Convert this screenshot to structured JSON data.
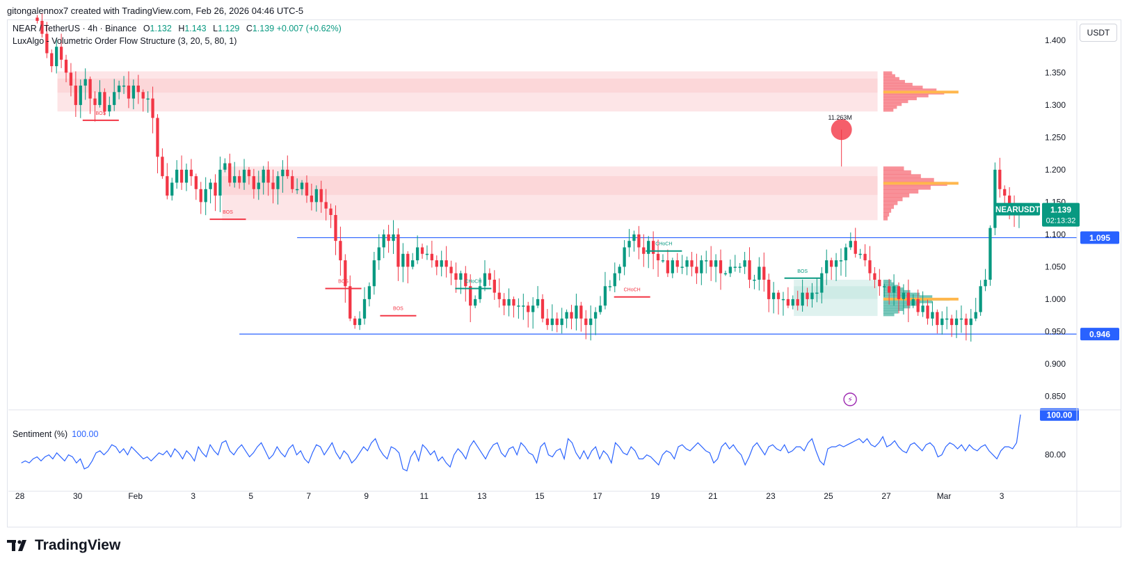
{
  "caption": "gitongalennox7 created with TradingView.com, Feb 26, 2026 04:46 UTC-5",
  "legend": {
    "symbol": "NEAR / TetherUS · 4h · Binance",
    "o_label": "O",
    "o": "1.132",
    "h_label": "H",
    "h": "1.143",
    "l_label": "L",
    "l": "1.129",
    "c_label": "C",
    "c": "1.139",
    "change": "+0.007 (+0.62%)",
    "indicator": "LuxAlgo - Volumetric Order Flow Structure (3, 20, 5, 80, 1)"
  },
  "sentiment": {
    "label": "Sentiment (%)",
    "value": "100.00",
    "axis_label": "80.00",
    "badge": "100.00"
  },
  "currency": "USDT",
  "price_badge": {
    "symbol": "NEARUSDT",
    "price": "1.139",
    "countdown": "02:13:32"
  },
  "brand": "TradingView",
  "colors": {
    "up": "#089981",
    "down": "#f23645",
    "level": "#2962ff",
    "sentiment": "#2962ff",
    "poc": "#ffb74d"
  },
  "chart_data": {
    "type": "candlestick",
    "title": "NEAR / TetherUS · 4h · Binance",
    "ylim": [
      0.83,
      1.43
    ],
    "y_ticks": [
      1.4,
      1.35,
      1.3,
      1.25,
      1.2,
      1.15,
      1.1,
      1.05,
      1.0,
      0.95,
      0.9,
      0.85
    ],
    "y_tick_labels": [
      "1.400",
      "1.350",
      "1.300",
      "1.250",
      "1.200",
      "1.150",
      "1.100",
      "1.050",
      "1.000",
      "0.950",
      "0.900",
      "0.850"
    ],
    "x_ticks": [
      {
        "day": 28,
        "label": "28"
      },
      {
        "day": 30,
        "label": "30"
      },
      {
        "day": 32,
        "label": "Feb"
      },
      {
        "day": 34,
        "label": "3"
      },
      {
        "day": 36,
        "label": "5"
      },
      {
        "day": 38,
        "label": "7"
      },
      {
        "day": 40,
        "label": "9"
      },
      {
        "day": 42,
        "label": "11"
      },
      {
        "day": 44,
        "label": "13"
      },
      {
        "day": 46,
        "label": "15"
      },
      {
        "day": 48,
        "label": "17"
      },
      {
        "day": 50,
        "label": "19"
      },
      {
        "day": 52,
        "label": "21"
      },
      {
        "day": 54,
        "label": "23"
      },
      {
        "day": 56,
        "label": "25"
      },
      {
        "day": 58,
        "label": "27"
      },
      {
        "day": 60,
        "label": "Mar"
      },
      {
        "day": 62,
        "label": "3"
      }
    ],
    "xlim_days": [
      27.6,
      64.6
    ],
    "candles_start_day": 28.6,
    "candles_per_day": 6,
    "closes": [
      1.43,
      1.41,
      1.38,
      1.36,
      1.39,
      1.37,
      1.35,
      1.33,
      1.3,
      1.33,
      1.34,
      1.31,
      1.3,
      1.32,
      1.29,
      1.3,
      1.32,
      1.33,
      1.33,
      1.31,
      1.33,
      1.32,
      1.31,
      1.31,
      1.28,
      1.22,
      1.19,
      1.16,
      1.18,
      1.2,
      1.18,
      1.2,
      1.19,
      1.17,
      1.15,
      1.17,
      1.18,
      1.16,
      1.2,
      1.21,
      1.18,
      1.19,
      1.18,
      1.2,
      1.19,
      1.17,
      1.18,
      1.2,
      1.18,
      1.17,
      1.19,
      1.2,
      1.19,
      1.17,
      1.17,
      1.18,
      1.16,
      1.15,
      1.17,
      1.15,
      1.14,
      1.13,
      1.09,
      1.06,
      1.02,
      0.97,
      0.96,
      0.97,
      1.0,
      1.02,
      1.06,
      1.08,
      1.1,
      1.09,
      1.1,
      1.05,
      1.07,
      1.05,
      1.06,
      1.08,
      1.07,
      1.07,
      1.06,
      1.05,
      1.06,
      1.05,
      1.04,
      1.03,
      1.04,
      1.02,
      0.99,
      1.0,
      1.02,
      1.04,
      1.03,
      1.01,
      1.0,
      0.99,
      1.0,
      0.99,
      0.99,
      0.99,
      0.98,
      0.99,
      1.0,
      0.97,
      0.96,
      0.97,
      0.96,
      0.97,
      0.98,
      0.97,
      0.99,
      0.97,
      0.96,
      0.97,
      0.98,
      0.99,
      1.02,
      1.02,
      1.04,
      1.05,
      1.08,
      1.09,
      1.1,
      1.08,
      1.07,
      1.09,
      1.07,
      1.06,
      1.06,
      1.04,
      1.06,
      1.05,
      1.05,
      1.06,
      1.05,
      1.04,
      1.06,
      1.06,
      1.05,
      1.06,
      1.04,
      1.04,
      1.05,
      1.05,
      1.05,
      1.06,
      1.03,
      1.03,
      1.05,
      1.03,
      1.0,
      1.01,
      1.0,
      1.0,
      0.99,
      1.0,
      0.99,
      1.01,
      1.0,
      1.01,
      1.01,
      1.04,
      1.06,
      1.05,
      1.06,
      1.06,
      1.08,
      1.09,
      1.07,
      1.07,
      1.06,
      1.04,
      1.03,
      1.02,
      1.02,
      1.01,
      1.02,
      1.0,
      1.01,
      0.99,
      1.0,
      0.98,
      0.99,
      0.97,
      0.98,
      0.96,
      0.97,
      0.97,
      0.96,
      0.97,
      0.97,
      0.96,
      0.97,
      0.98,
      1.02,
      1.03,
      1.11,
      1.2,
      1.17,
      1.16,
      1.14,
      1.13,
      1.139
    ],
    "volume_profile_zones": [
      {
        "type": "supply",
        "top": 1.352,
        "bottom": 1.29,
        "poc": 1.32
      },
      {
        "type": "supply",
        "top": 1.205,
        "bottom": 1.122,
        "poc": 1.179
      },
      {
        "type": "demand",
        "top": 1.03,
        "bottom": 0.974,
        "poc": 1.0
      }
    ],
    "horizontal_levels": [
      {
        "price": 1.095,
        "label": "1.095",
        "from_day": 37.6,
        "to_day": 64.6
      },
      {
        "price": 0.946,
        "label": "0.946",
        "from_day": 35.6,
        "to_day": 64.6
      }
    ],
    "structure_labels": [
      {
        "text": "BOS",
        "day": 30.8,
        "price": 1.285,
        "color": "down"
      },
      {
        "text": "BOS",
        "day": 35.2,
        "price": 1.132,
        "color": "down"
      },
      {
        "text": "BOS",
        "day": 39.2,
        "price": 1.025,
        "color": "down"
      },
      {
        "text": "BOS",
        "day": 41.1,
        "price": 0.983,
        "color": "down"
      },
      {
        "text": "CHoCH",
        "day": 43.7,
        "price": 1.025,
        "color": "up"
      },
      {
        "text": "CHoCH",
        "day": 50.3,
        "price": 1.083,
        "color": "up"
      },
      {
        "text": "CHoCH",
        "day": 49.2,
        "price": 1.012,
        "color": "down"
      },
      {
        "text": "BOS",
        "day": 55.1,
        "price": 1.041,
        "color": "up"
      }
    ],
    "spike": {
      "label": "11.263M",
      "day": 56.45,
      "price": 1.262
    },
    "sentiment": {
      "values": [
        76,
        77,
        76,
        78,
        79,
        77,
        79,
        80,
        78,
        81,
        79,
        77,
        80,
        79,
        76,
        78,
        73,
        74,
        77,
        81,
        82,
        80,
        82,
        85,
        84,
        81,
        83,
        80,
        84,
        82,
        80,
        78,
        79,
        77,
        79,
        81,
        80,
        82,
        79,
        83,
        81,
        78,
        82,
        80,
        77,
        84,
        81,
        79,
        85,
        82,
        80,
        86,
        87,
        82,
        80,
        83,
        85,
        82,
        79,
        81,
        84,
        86,
        82,
        78,
        80,
        84,
        81,
        79,
        83,
        85,
        80,
        82,
        78,
        76,
        81,
        85,
        84,
        80,
        83,
        86,
        81,
        78,
        82,
        80,
        76,
        78,
        81,
        84,
        82,
        86,
        88,
        83,
        80,
        78,
        84,
        83,
        81,
        73,
        72,
        79,
        82,
        77,
        85,
        83,
        80,
        82,
        77,
        79,
        76,
        74,
        80,
        83,
        81,
        78,
        84,
        87,
        84,
        81,
        78,
        82,
        85,
        86,
        81,
        79,
        83,
        84,
        80,
        86,
        84,
        81,
        80,
        76,
        84,
        86,
        80,
        79,
        82,
        83,
        78,
        88,
        86,
        81,
        78,
        82,
        78,
        82,
        84,
        78,
        82,
        80,
        76,
        86,
        84,
        81,
        80,
        84,
        82,
        78,
        78,
        80,
        79,
        77,
        75,
        80,
        82,
        81,
        78,
        84,
        85,
        83,
        82,
        84,
        86,
        84,
        82,
        81,
        76,
        78,
        84,
        86,
        83,
        85,
        82,
        80,
        75,
        79,
        84,
        86,
        83,
        80,
        84,
        85,
        83,
        82,
        85,
        81,
        82,
        84,
        84,
        82,
        86,
        88,
        82,
        77,
        75,
        83,
        84,
        84,
        85,
        84,
        85,
        86,
        87,
        88,
        86,
        88,
        85,
        84,
        86,
        89,
        84,
        85,
        87,
        84,
        82,
        81,
        85,
        86,
        84,
        82,
        85,
        86,
        84,
        79,
        80,
        84,
        86,
        85,
        83,
        85,
        82,
        85,
        83,
        82,
        84,
        85,
        82,
        80,
        78,
        82,
        84,
        84,
        83,
        86,
        100
      ]
    }
  }
}
